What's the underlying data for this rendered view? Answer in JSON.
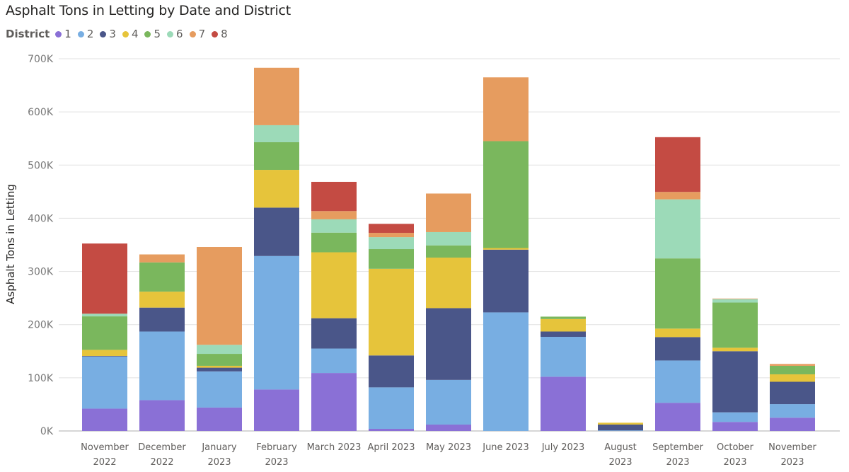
{
  "chart_data": {
    "type": "bar",
    "stacked": true,
    "title": "Asphalt Tons in Letting by Date and District",
    "xlabel": "",
    "ylabel": "Asphalt Tons in Letting",
    "ylim": [
      0,
      700000
    ],
    "yticks": [
      0,
      100000,
      200000,
      300000,
      400000,
      500000,
      600000,
      700000
    ],
    "ytick_labels": [
      "0K",
      "100K",
      "200K",
      "300K",
      "400K",
      "500K",
      "600K",
      "700K"
    ],
    "grid": true,
    "legend": {
      "title": "District",
      "placement": "top-left"
    },
    "categories": [
      [
        "November",
        "2022"
      ],
      [
        "December",
        "2022"
      ],
      [
        "January",
        "2023"
      ],
      [
        "February",
        "2023"
      ],
      [
        "March 2023"
      ],
      [
        "April 2023"
      ],
      [
        "May 2023"
      ],
      [
        "June 2023"
      ],
      [
        "July 2023"
      ],
      [
        "August",
        "2023"
      ],
      [
        "September",
        "2023"
      ],
      [
        "October",
        "2023"
      ],
      [
        "November",
        "2023"
      ]
    ],
    "series": [
      {
        "name": "1",
        "color": "#8A70D6",
        "values": [
          42000,
          58000,
          44000,
          78000,
          109000,
          4000,
          12000,
          0,
          102000,
          0,
          53000,
          17000,
          25000
        ]
      },
      {
        "name": "2",
        "color": "#78AEE2",
        "values": [
          98000,
          129000,
          68000,
          251000,
          46000,
          78000,
          84000,
          223000,
          75000,
          1000,
          79500,
          18000,
          25500
        ]
      },
      {
        "name": "3",
        "color": "#4A5689",
        "values": [
          1000,
          45000,
          7000,
          91000,
          57000,
          60000,
          135000,
          118000,
          10000,
          11000,
          44000,
          115000,
          42000
        ]
      },
      {
        "name": "4",
        "color": "#E6C43B",
        "values": [
          11500,
          30000,
          3500,
          71000,
          124000,
          163000,
          95000,
          3000,
          23500,
          3500,
          16000,
          6500,
          14000
        ]
      },
      {
        "name": "5",
        "color": "#7AB75D",
        "values": [
          63000,
          55000,
          22500,
          52000,
          37000,
          37000,
          23000,
          201000,
          4500,
          0,
          132000,
          85000,
          16000
        ]
      },
      {
        "name": "6",
        "color": "#9CDAB8",
        "values": [
          5000,
          0,
          17000,
          32000,
          25000,
          22500,
          25000,
          0,
          0,
          0,
          111000,
          6500,
          0
        ]
      },
      {
        "name": "7",
        "color": "#E69C5F",
        "values": [
          0,
          15000,
          184000,
          108000,
          15500,
          8000,
          72500,
          120000,
          0,
          0,
          14000,
          1000,
          3500
        ]
      },
      {
        "name": "8",
        "color": "#C44B43",
        "values": [
          132000,
          0,
          0,
          0,
          55000,
          17000,
          0,
          0,
          0,
          0,
          103000,
          0,
          0
        ]
      }
    ]
  }
}
